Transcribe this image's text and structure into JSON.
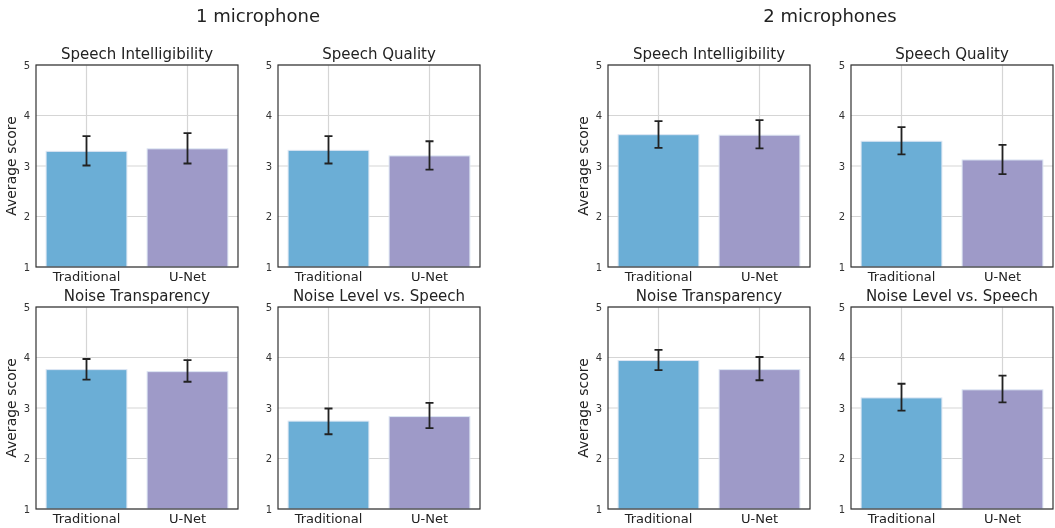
{
  "chart_data": [
    {
      "type": "bar",
      "title": "Speech Intelligibility",
      "ylabel": "Average score",
      "annotations": [
        "1 microphone"
      ],
      "categories": [
        "Traditional",
        "U-Net"
      ],
      "values": [
        3.29,
        3.34
      ],
      "colors": [
        "#6baed6",
        "#9e9ac8"
      ],
      "errors": [
        [
          3.01,
          3.59
        ],
        [
          3.05,
          3.65
        ]
      ],
      "ylim": [
        1,
        5
      ],
      "yticks": [
        1,
        2,
        3,
        4,
        5
      ],
      "grid": true
    },
    {
      "type": "bar",
      "title": "Speech Quality",
      "categories": [
        "Traditional",
        "U-Net"
      ],
      "values": [
        3.31,
        3.2
      ],
      "colors": [
        "#6baed6",
        "#9e9ac8"
      ],
      "errors": [
        [
          3.05,
          3.59
        ],
        [
          2.93,
          3.49
        ]
      ],
      "ylim": [
        1,
        5
      ],
      "yticks": [
        1,
        2,
        3,
        4,
        5
      ],
      "grid": true
    },
    {
      "type": "bar",
      "title": "Noise Transparency",
      "ylabel": "Average score",
      "categories": [
        "Traditional",
        "U-Net"
      ],
      "values": [
        3.76,
        3.72
      ],
      "colors": [
        "#6baed6",
        "#9e9ac8"
      ],
      "errors": [
        [
          3.56,
          3.97
        ],
        [
          3.52,
          3.95
        ]
      ],
      "ylim": [
        1,
        5
      ],
      "yticks": [
        1,
        2,
        3,
        4,
        5
      ],
      "grid": true
    },
    {
      "type": "bar",
      "title": "Noise Level vs. Speech",
      "categories": [
        "Traditional",
        "U-Net"
      ],
      "values": [
        2.74,
        2.83
      ],
      "colors": [
        "#6baed6",
        "#9e9ac8"
      ],
      "errors": [
        [
          2.48,
          2.99
        ],
        [
          2.6,
          3.1
        ]
      ],
      "ylim": [
        1,
        5
      ],
      "yticks": [
        1,
        2,
        3,
        4,
        5
      ],
      "grid": true
    },
    {
      "type": "bar",
      "title": "Speech Intelligibility",
      "ylabel": "Average score",
      "annotations": [
        "2 microphones"
      ],
      "categories": [
        "Traditional",
        "U-Net"
      ],
      "values": [
        3.62,
        3.61
      ],
      "colors": [
        "#6baed6",
        "#9e9ac8"
      ],
      "errors": [
        [
          3.36,
          3.89
        ],
        [
          3.35,
          3.91
        ]
      ],
      "ylim": [
        1,
        5
      ],
      "yticks": [
        1,
        2,
        3,
        4,
        5
      ],
      "grid": true
    },
    {
      "type": "bar",
      "title": "Speech Quality",
      "categories": [
        "Traditional",
        "U-Net"
      ],
      "values": [
        3.49,
        3.12
      ],
      "colors": [
        "#6baed6",
        "#9e9ac8"
      ],
      "errors": [
        [
          3.23,
          3.77
        ],
        [
          2.84,
          3.42
        ]
      ],
      "ylim": [
        1,
        5
      ],
      "yticks": [
        1,
        2,
        3,
        4,
        5
      ],
      "grid": true
    },
    {
      "type": "bar",
      "title": "Noise Transparency",
      "ylabel": "Average score",
      "categories": [
        "Traditional",
        "U-Net"
      ],
      "values": [
        3.94,
        3.76
      ],
      "colors": [
        "#6baed6",
        "#9e9ac8"
      ],
      "errors": [
        [
          3.75,
          4.15
        ],
        [
          3.55,
          4.01
        ]
      ],
      "ylim": [
        1,
        5
      ],
      "yticks": [
        1,
        2,
        3,
        4,
        5
      ],
      "grid": true
    },
    {
      "type": "bar",
      "title": "Noise Level vs. Speech",
      "categories": [
        "Traditional",
        "U-Net"
      ],
      "values": [
        3.2,
        3.36
      ],
      "colors": [
        "#6baed6",
        "#9e9ac8"
      ],
      "errors": [
        [
          2.95,
          3.48
        ],
        [
          3.11,
          3.64
        ]
      ],
      "ylim": [
        1,
        5
      ],
      "yticks": [
        1,
        2,
        3,
        4,
        5
      ],
      "grid": true
    }
  ]
}
